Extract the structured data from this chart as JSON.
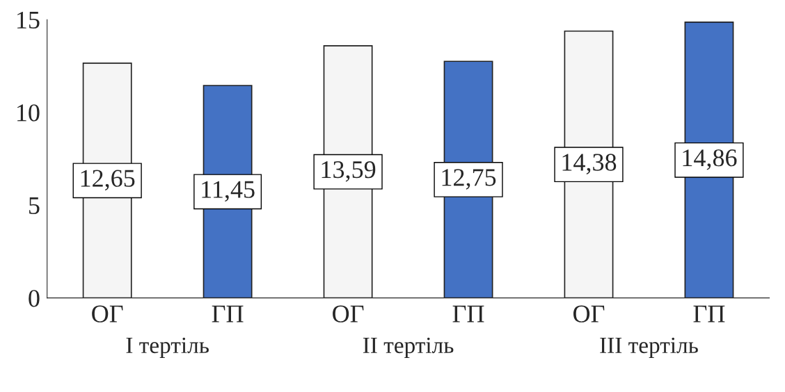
{
  "chart_data": {
    "type": "bar",
    "categories": [
      "ОГ",
      "ГП",
      "ОГ",
      "ГП",
      "ОГ",
      "ГП"
    ],
    "values": [
      12.65,
      11.45,
      13.59,
      12.75,
      14.38,
      14.86
    ],
    "value_labels": [
      "12,65",
      "11,45",
      "13,59",
      "12,75",
      "14,38",
      "14,86"
    ],
    "colors": [
      "#f5f5f5",
      "#4472c4",
      "#f5f5f5",
      "#4472c4",
      "#f5f5f5",
      "#4472c4"
    ],
    "annotations": [
      "І тертіль",
      "ІІ тертіль",
      "ІІІ тертіль"
    ],
    "ylim": [
      0,
      15
    ],
    "yticks": [
      0,
      5,
      10,
      15
    ],
    "grid": false
  }
}
